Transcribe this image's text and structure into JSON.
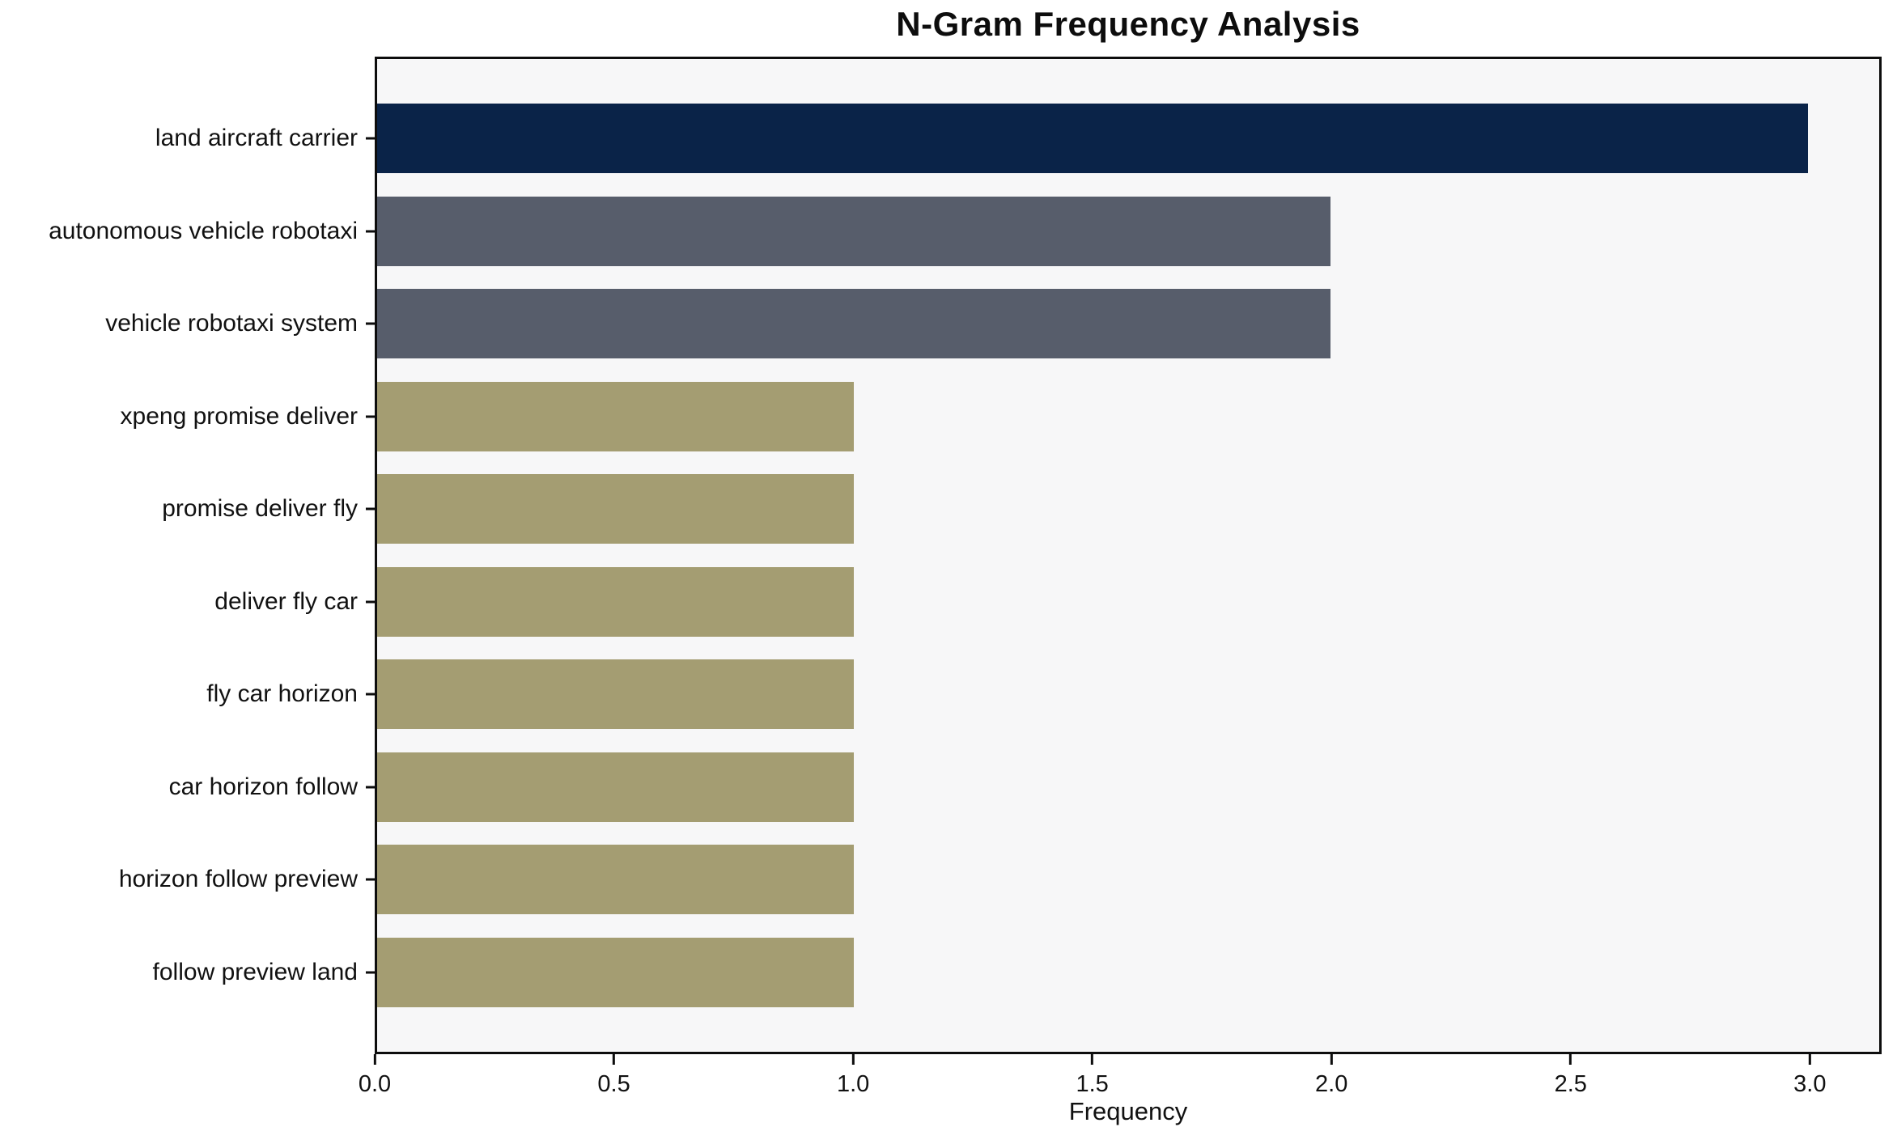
{
  "chart_data": {
    "type": "bar",
    "orientation": "horizontal",
    "title": "N-Gram Frequency Analysis",
    "xlabel": "Frequency",
    "ylabel": "",
    "categories": [
      "land aircraft carrier",
      "autonomous vehicle robotaxi",
      "vehicle robotaxi system",
      "xpeng promise deliver",
      "promise deliver fly",
      "deliver fly car",
      "fly car horizon",
      "car horizon follow",
      "horizon follow preview",
      "follow preview land"
    ],
    "values": [
      3,
      2,
      2,
      1,
      1,
      1,
      1,
      1,
      1,
      1
    ],
    "bar_colors": [
      "#0a2348",
      "#575d6b",
      "#575d6b",
      "#a49d72",
      "#a49d72",
      "#a49d72",
      "#a49d72",
      "#a49d72",
      "#a49d72",
      "#a49d72"
    ],
    "xlim": [
      0,
      3.15
    ],
    "xticks": [
      0,
      0.5,
      1,
      1.5,
      2,
      2.5,
      3
    ],
    "xtick_labels": [
      "0.0",
      "0.5",
      "1.0",
      "1.5",
      "2.0",
      "2.5",
      "3.0"
    ],
    "grid": false,
    "legend_position": "none",
    "plot_background": "#f7f7f8",
    "figure_background": "#ffffff",
    "axis_color": "#0d0d0d"
  }
}
